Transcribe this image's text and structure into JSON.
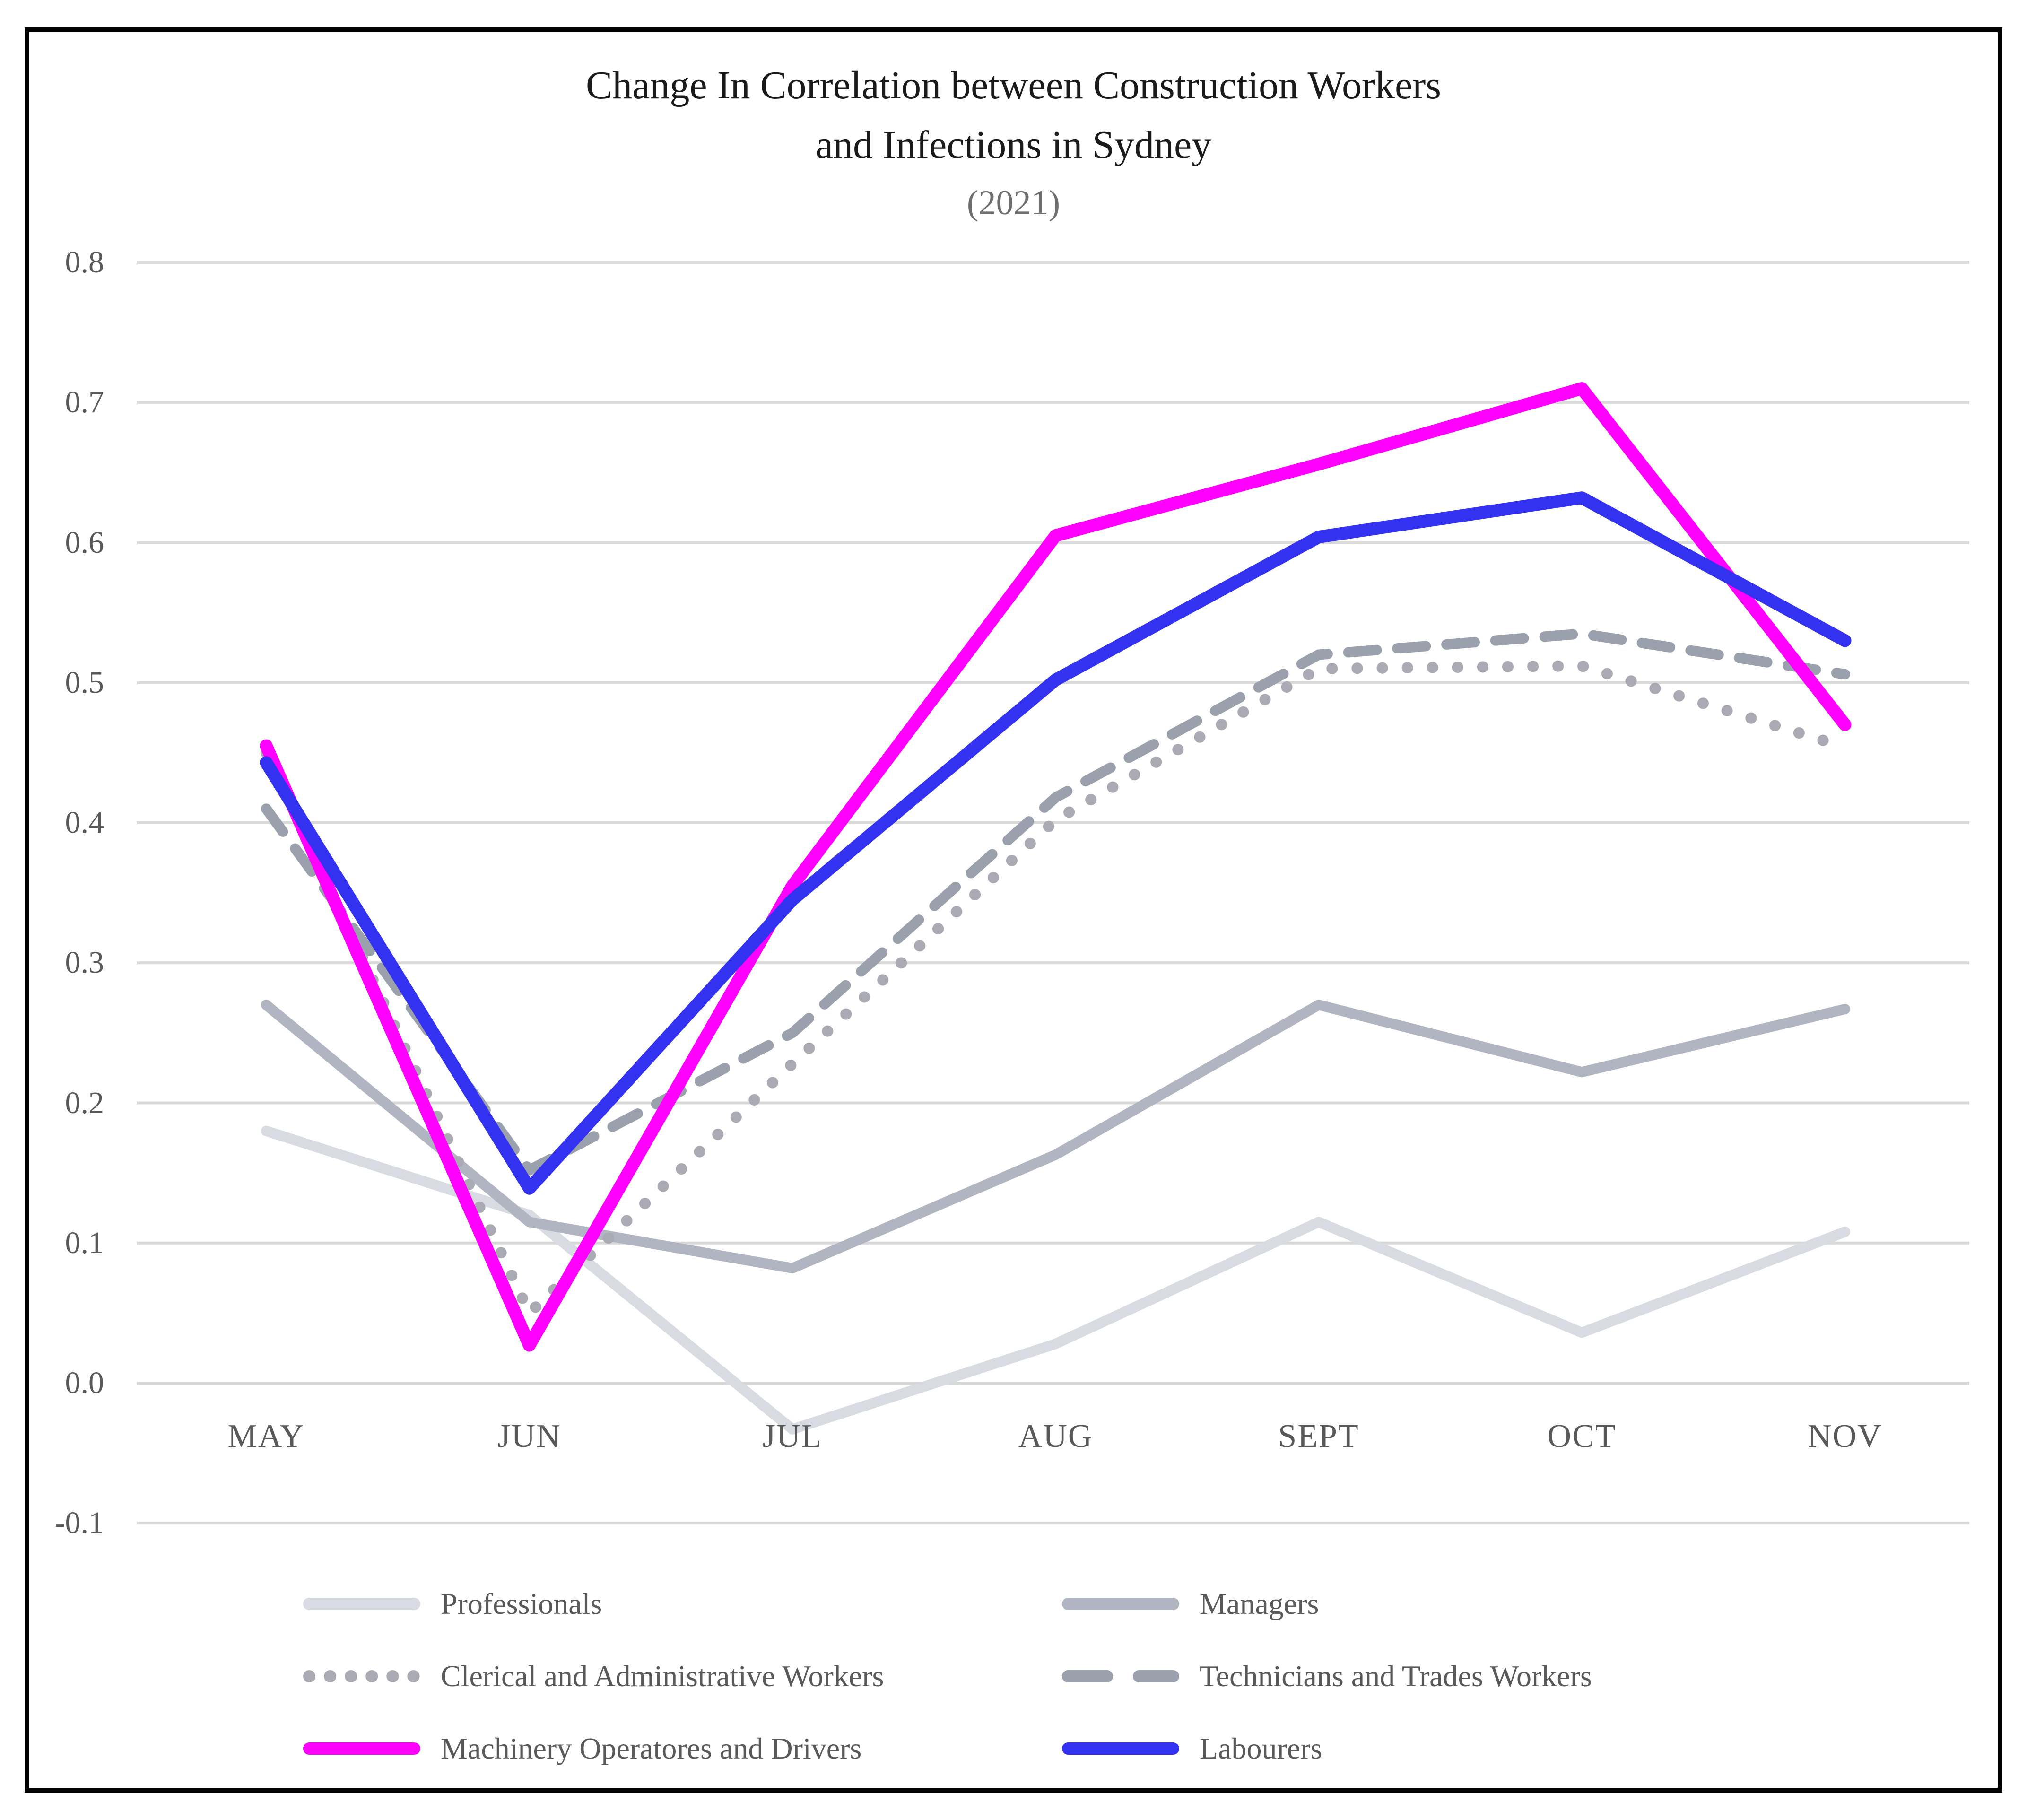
{
  "chart_data": {
    "type": "line",
    "title_lines": [
      "Change In Correlation between Construction Workers",
      "and Infections in Sydney"
    ],
    "subtitle": "(2021)",
    "categories": [
      "MAY",
      "JUN",
      "JUL",
      "AUG",
      "SEPT",
      "OCT",
      "NOV"
    ],
    "y_ticks": [
      "0.8",
      "0.7",
      "0.6",
      "0.5",
      "0.4",
      "0.3",
      "0.2",
      "0.1",
      "0.0",
      "-0.1"
    ],
    "ylim": [
      -0.1,
      0.8
    ],
    "grid": true,
    "legend_position": "bottom",
    "legend_columns": 2,
    "series": [
      {
        "name": "Professionals",
        "style": "solid",
        "color": "#D9DBE2",
        "width": 22,
        "values": [
          0.18,
          0.12,
          -0.033,
          0.028,
          0.115,
          0.036,
          0.108
        ]
      },
      {
        "name": "Managers",
        "style": "solid",
        "color": "#B0B5C1",
        "width": 22,
        "values": [
          0.27,
          0.115,
          0.082,
          0.163,
          0.27,
          0.222,
          0.267
        ]
      },
      {
        "name": "Clerical and Administrative Workers",
        "style": "dotted",
        "color": "#A9AAB4",
        "width": 24,
        "values": [
          0.45,
          0.05,
          0.228,
          0.402,
          0.51,
          0.512,
          0.454
        ]
      },
      {
        "name": "Technicians and Trades Workers",
        "style": "dashed",
        "color": "#9AA0AC",
        "width": 22,
        "values": [
          0.41,
          0.152,
          0.25,
          0.418,
          0.52,
          0.535,
          0.506
        ]
      },
      {
        "name": "Machinery Operatores and Drivers",
        "style": "solid",
        "color": "#FF00FF",
        "width": 27,
        "values": [
          0.455,
          0.027,
          0.355,
          0.605,
          0.656,
          0.71,
          0.47
        ]
      },
      {
        "name": "Labourers",
        "style": "solid",
        "color": "#3232F0",
        "width": 27,
        "values": [
          0.443,
          0.139,
          0.345,
          0.502,
          0.604,
          0.632,
          0.53
        ]
      }
    ]
  },
  "colors": {
    "gridline": "#D9D9D9",
    "axis_label": "#595959",
    "title": "#1a1a1a",
    "subtitle": "#6E6E6E",
    "border": "#000000",
    "background": "#FFFFFF"
  }
}
